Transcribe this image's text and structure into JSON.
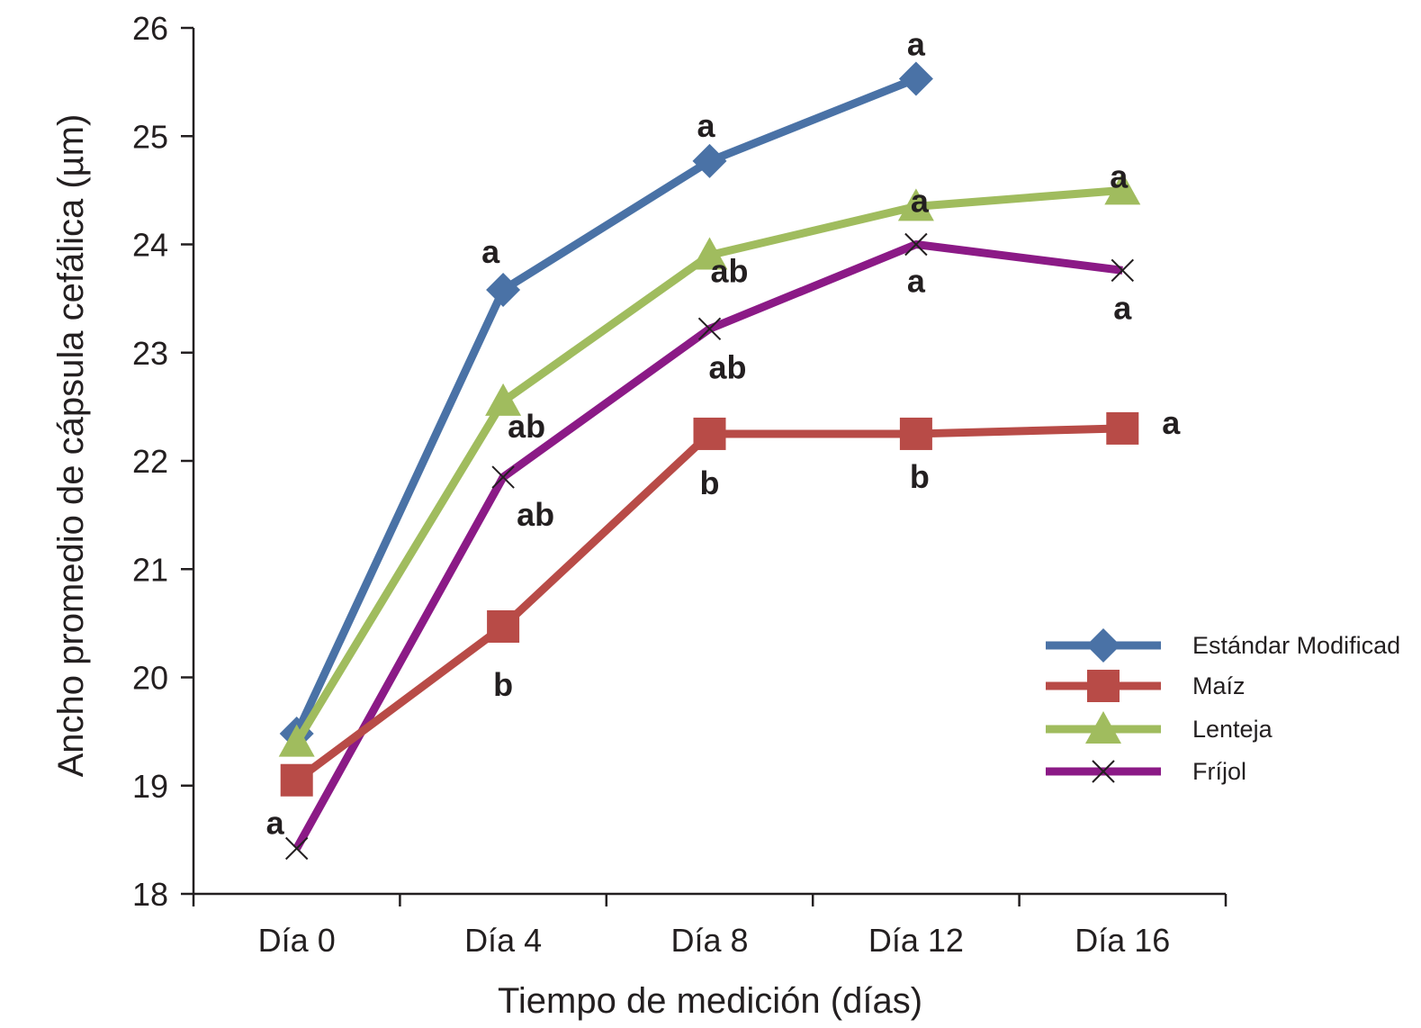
{
  "chart_data": {
    "type": "line",
    "title": "",
    "xlabel": "Tiempo de medición (días)",
    "ylabel": "Ancho promedio de cápsula cefálica (µm)",
    "categories": [
      "Día 0",
      "Día 4",
      "Día 8",
      "Día 12",
      "Día 16"
    ],
    "ylim": [
      18,
      26
    ],
    "yticks": [
      18,
      19,
      20,
      21,
      22,
      23,
      24,
      25,
      26
    ],
    "grid": false,
    "legend": "right",
    "series": [
      {
        "name": "Estándar Modificad",
        "color": "#4a72a6",
        "marker": "diamond",
        "values": [
          19.48,
          23.58,
          24.77,
          25.53,
          null
        ],
        "labels": [
          "",
          "a",
          "a",
          "a",
          ""
        ]
      },
      {
        "name": "Maíz",
        "color": "#b84b47",
        "marker": "square",
        "values": [
          19.05,
          20.47,
          22.25,
          22.25,
          22.3
        ],
        "labels": [
          "",
          "b",
          "b",
          "b",
          "a"
        ]
      },
      {
        "name": "Lenteja",
        "color": "#a0bc5e",
        "marker": "triangle",
        "values": [
          19.4,
          22.55,
          23.9,
          24.35,
          24.5
        ],
        "labels": [
          "",
          "ab",
          "ab",
          "a",
          "a"
        ]
      },
      {
        "name": "Fríjol",
        "color": "#8b1a86",
        "marker": "x",
        "values": [
          18.42,
          21.85,
          23.22,
          24.0,
          23.76
        ],
        "labels": [
          "a",
          "ab",
          "ab",
          "a",
          "a"
        ]
      }
    ]
  }
}
